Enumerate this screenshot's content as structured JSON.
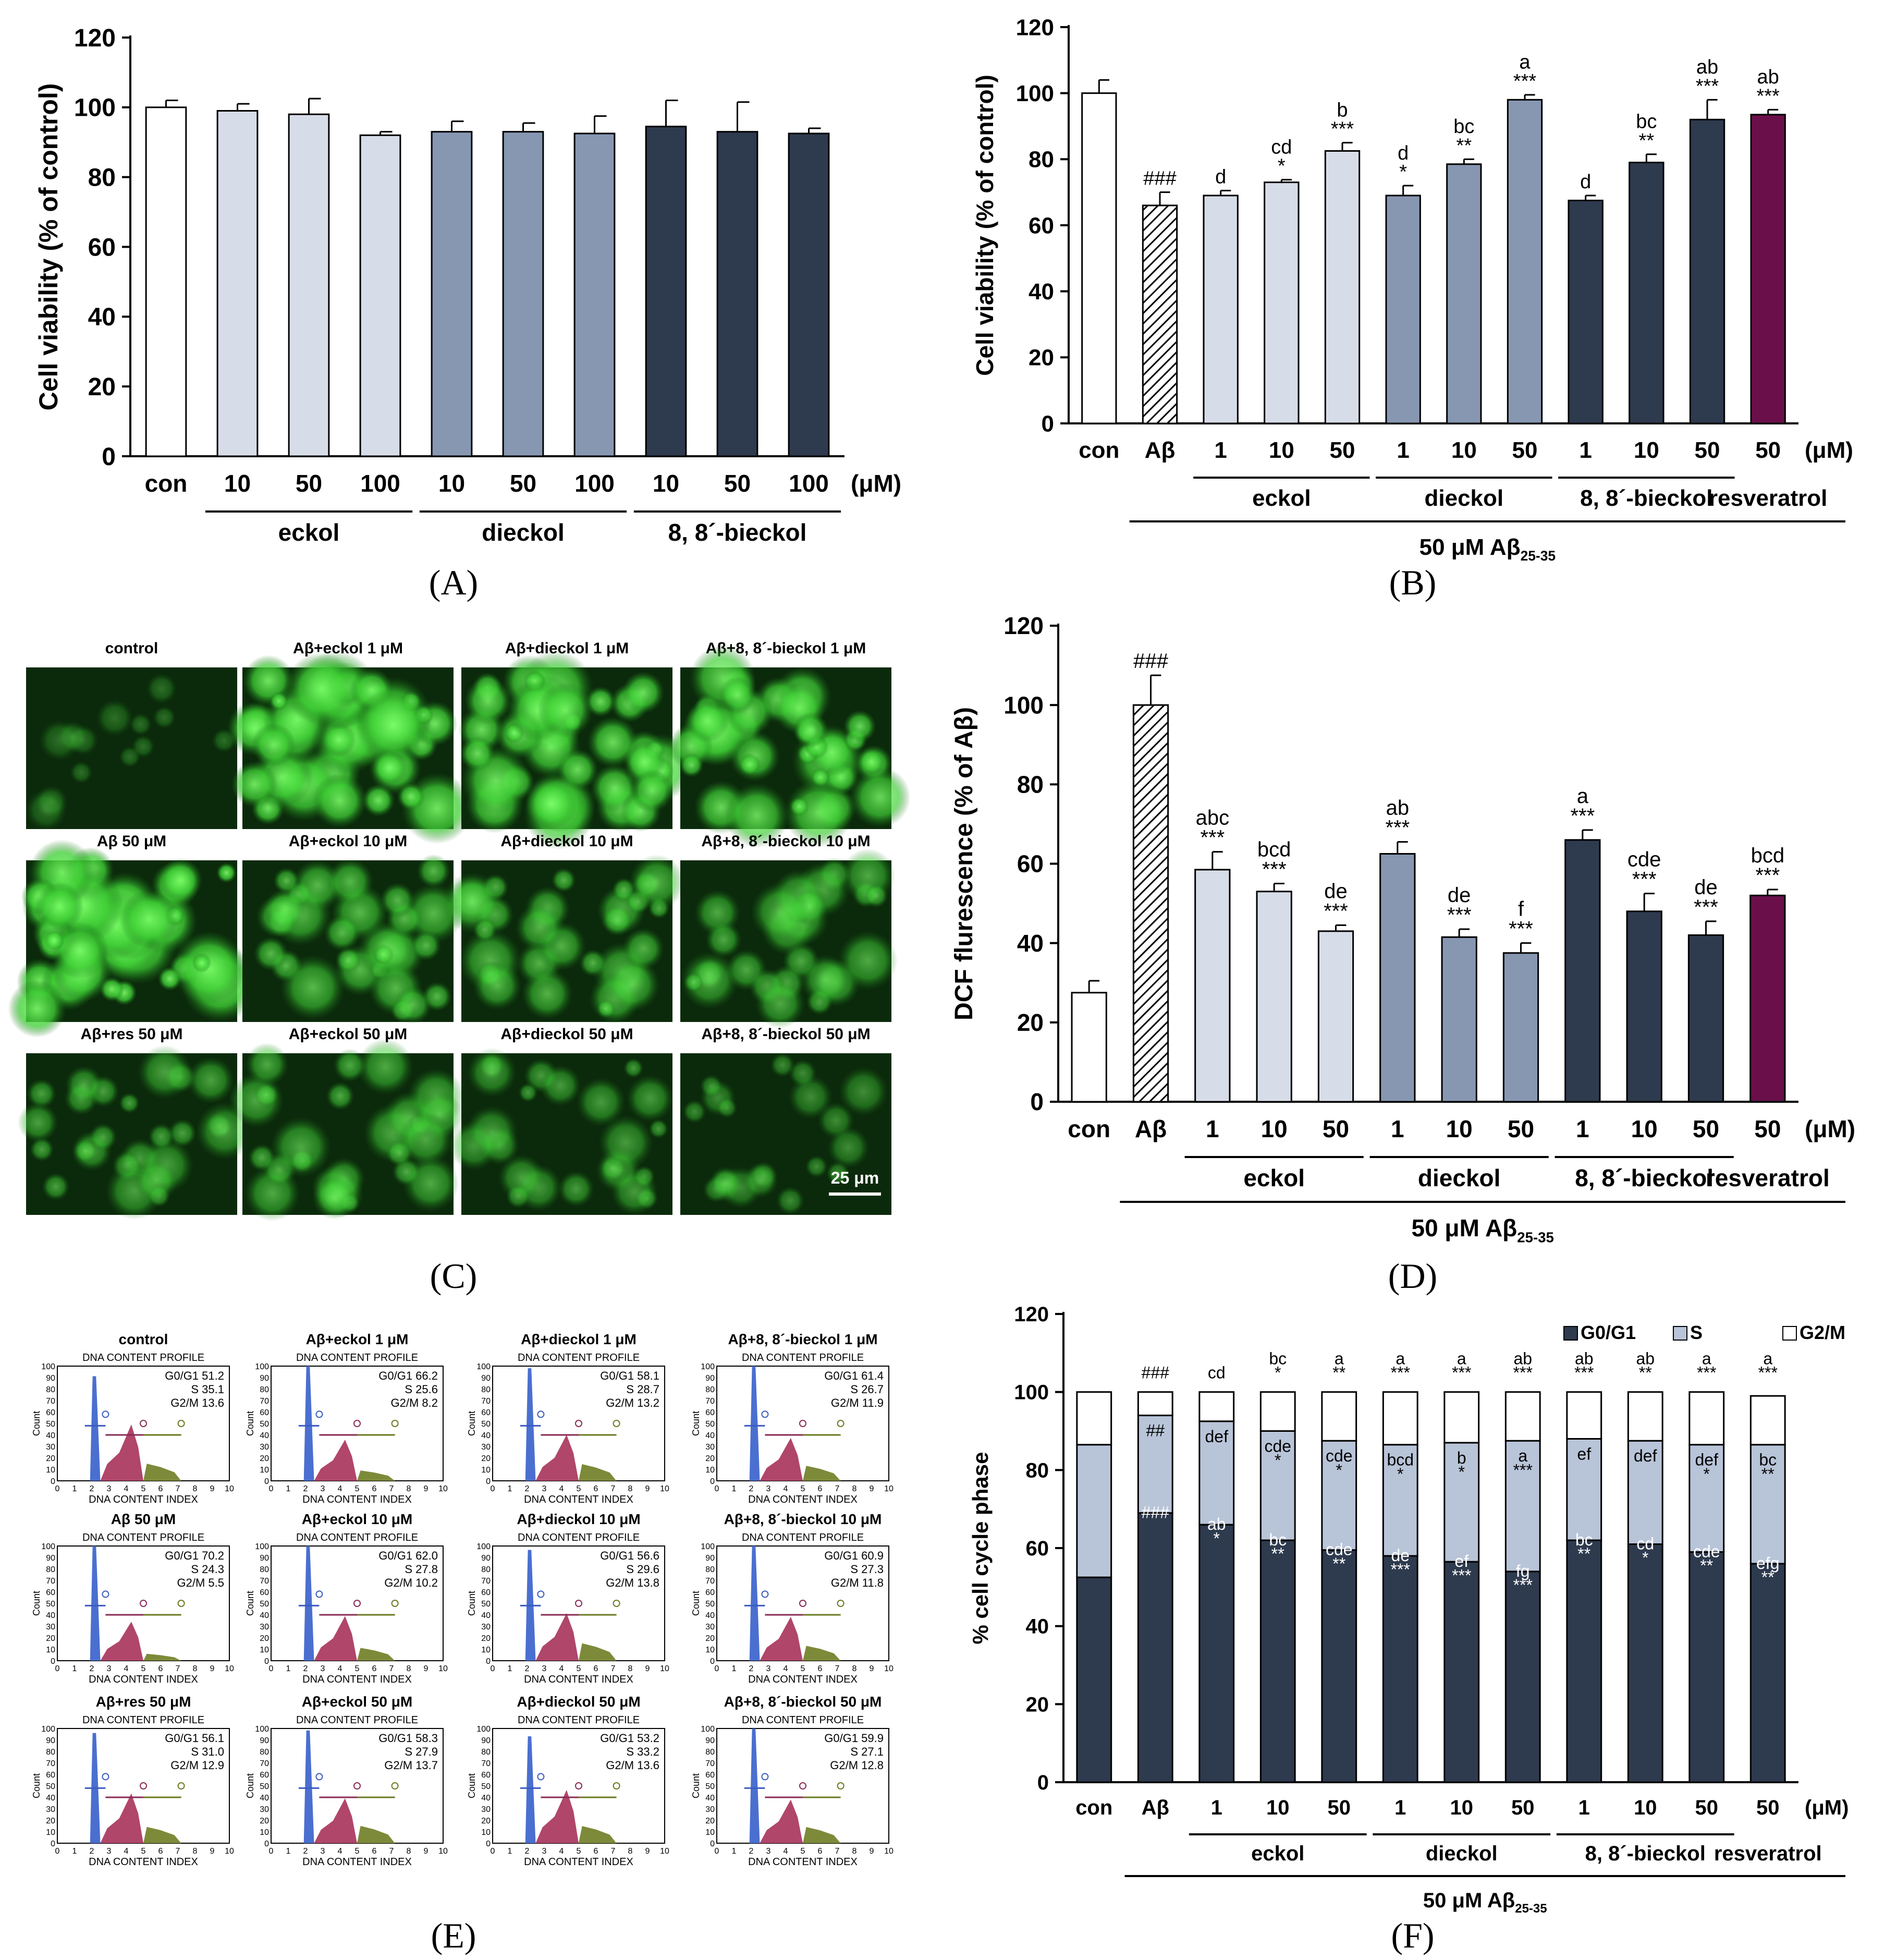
{
  "panel_labels": [
    "(A)",
    "(B)",
    "(C)",
    "(D)",
    "(E)",
    "(F)"
  ],
  "colors": {
    "white": "#ffffff",
    "light": "#d7dde8",
    "mid": "#8797b2",
    "dark": "#2e3a4e",
    "purple": "#6a0f4a",
    "g0g1": "#2e3a4e",
    "s": "#b8c4d8",
    "g2m": "#ffffff",
    "fluor_bg": "#0b2a0b",
    "fluor_bright": "#55e04a",
    "hist_blue": "#4a6fd0",
    "hist_red": "#b0466a",
    "hist_olive": "#7d8a3a"
  },
  "chart_data": [
    {
      "id": "A",
      "type": "bar",
      "ylabel": "Cell viability (% of control)",
      "ylim": [
        0,
        120
      ],
      "yticks": [
        "0",
        "20",
        "40",
        "60",
        "80",
        "100",
        "120"
      ],
      "categories": [
        "con",
        "10",
        "50",
        "100",
        "10",
        "50",
        "100",
        "10",
        "50",
        "100"
      ],
      "values": [
        100,
        99,
        98,
        92,
        93,
        93,
        92.5,
        94.5,
        93,
        92.5
      ],
      "errors": [
        2,
        2,
        4.5,
        1,
        3,
        2.5,
        5,
        7.5,
        8.5,
        1.5
      ],
      "colors": [
        "white",
        "light",
        "light",
        "light",
        "mid",
        "mid",
        "mid",
        "dark",
        "dark",
        "dark"
      ],
      "unit": "(μM)",
      "groups": [
        {
          "label": "eckol",
          "from": 1,
          "to": 3
        },
        {
          "label": "dieckol",
          "from": 4,
          "to": 6
        },
        {
          "label": "8, 8´-bieckol",
          "from": 7,
          "to": 9
        }
      ]
    },
    {
      "id": "B",
      "type": "bar",
      "ylabel": "Cell viability (% of control)",
      "ylim": [
        0,
        120
      ],
      "yticks": [
        "0",
        "20",
        "40",
        "60",
        "80",
        "100",
        "120"
      ],
      "categories": [
        "con",
        "Aβ",
        "1",
        "10",
        "50",
        "1",
        "10",
        "50",
        "1",
        "10",
        "50",
        "50"
      ],
      "values": [
        100,
        66,
        69,
        73,
        82.5,
        69,
        78.5,
        98,
        67.5,
        79,
        92,
        93.5
      ],
      "errors": [
        4,
        4,
        1.5,
        0.8,
        2.5,
        3,
        1.5,
        1.5,
        1.5,
        2.5,
        6,
        1.5
      ],
      "colors": [
        "white",
        "hatch",
        "light",
        "light",
        "light",
        "mid",
        "mid",
        "mid",
        "dark",
        "dark",
        "dark",
        "purple"
      ],
      "annotations": [
        [
          ""
        ],
        [
          "###"
        ],
        [
          "d"
        ],
        [
          "cd",
          "*"
        ],
        [
          "b",
          "***"
        ],
        [
          "d",
          "*"
        ],
        [
          "bc",
          "**"
        ],
        [
          "a",
          "***"
        ],
        [
          "d"
        ],
        [
          "bc",
          "**"
        ],
        [
          "ab",
          "***"
        ],
        [
          "ab",
          "***"
        ]
      ],
      "unit": "(μM)",
      "groups": [
        {
          "label": "eckol",
          "from": 2,
          "to": 4
        },
        {
          "label": "dieckol",
          "from": 5,
          "to": 7
        },
        {
          "label": "8, 8´-bieckol",
          "from": 8,
          "to": 10
        },
        {
          "label": "resveratrol",
          "from": 11,
          "to": 11
        }
      ],
      "treatment": {
        "prefix": "50 μM Aβ",
        "sub": "25-35"
      }
    },
    {
      "id": "D",
      "type": "bar",
      "ylabel": "DCF flurescence (% of  Aβ)",
      "ylim": [
        0,
        120
      ],
      "yticks": [
        "0",
        "20",
        "40",
        "60",
        "80",
        "100",
        "120"
      ],
      "categories": [
        "con",
        "Aβ",
        "1",
        "10",
        "50",
        "1",
        "10",
        "50",
        "1",
        "10",
        "50",
        "50"
      ],
      "values": [
        27.5,
        100,
        58.5,
        53,
        43,
        62.5,
        41.5,
        37.5,
        66,
        48,
        42,
        52
      ],
      "errors": [
        3,
        7.5,
        4.5,
        2,
        1.5,
        3,
        2,
        2.5,
        2.5,
        4.5,
        3.5,
        1.5
      ],
      "colors": [
        "white",
        "hatch",
        "light",
        "light",
        "light",
        "mid",
        "mid",
        "mid",
        "dark",
        "dark",
        "dark",
        "purple"
      ],
      "annotations": [
        [
          ""
        ],
        [
          "###"
        ],
        [
          "abc",
          "***"
        ],
        [
          "bcd",
          "***"
        ],
        [
          "de",
          "***"
        ],
        [
          "ab",
          "***"
        ],
        [
          "de",
          "***"
        ],
        [
          "f",
          "***"
        ],
        [
          "a",
          "***"
        ],
        [
          "cde",
          "***"
        ],
        [
          "de",
          "***"
        ],
        [
          "bcd",
          "***"
        ]
      ],
      "unit": "(μM)",
      "groups": [
        {
          "label": "eckol",
          "from": 2,
          "to": 4
        },
        {
          "label": "dieckol",
          "from": 5,
          "to": 7
        },
        {
          "label": "8, 8´-bieckol",
          "from": 8,
          "to": 10
        },
        {
          "label": "resveratrol",
          "from": 11,
          "to": 11
        }
      ],
      "treatment": {
        "prefix": "50 μM Aβ",
        "sub": "25-35"
      }
    },
    {
      "id": "F",
      "type": "bar",
      "stacked": true,
      "ylabel": "% cell cycle phase",
      "ylim": [
        0,
        120
      ],
      "yticks": [
        "0",
        "20",
        "40",
        "60",
        "80",
        "100",
        "120"
      ],
      "categories": [
        "con",
        "Aβ",
        "1",
        "10",
        "50",
        "1",
        "10",
        "50",
        "1",
        "10",
        "50",
        "50"
      ],
      "series": [
        {
          "name": "G0/G1",
          "values": [
            52.5,
            69,
            66,
            62,
            59.5,
            58,
            56.5,
            54,
            62,
            61,
            59,
            56
          ]
        },
        {
          "name": "S",
          "values": [
            34,
            25,
            26.5,
            28,
            28,
            28.5,
            30.5,
            33.5,
            26,
            26.5,
            27.5,
            30.5
          ]
        },
        {
          "name": "G2/M",
          "values": [
            13.5,
            6,
            7.5,
            10,
            12.5,
            13.5,
            13,
            12.5,
            12,
            12.5,
            13.5,
            12.5
          ]
        }
      ],
      "annotations_g2m": [
        [
          ""
        ],
        [
          "###"
        ],
        [
          "cd"
        ],
        [
          "bc",
          "*"
        ],
        [
          "a",
          "**"
        ],
        [
          "a",
          "***"
        ],
        [
          "a",
          "***"
        ],
        [
          "ab",
          "***"
        ],
        [
          "ab",
          "***"
        ],
        [
          "ab",
          "**"
        ],
        [
          "a",
          "***"
        ],
        [
          "a",
          "***"
        ]
      ],
      "annotations_s": [
        [
          ""
        ],
        [
          "##"
        ],
        [
          "def"
        ],
        [
          "cde",
          "*"
        ],
        [
          "cde",
          "*"
        ],
        [
          "bcd",
          "*"
        ],
        [
          "b",
          "*"
        ],
        [
          "a",
          "***"
        ],
        [
          "ef"
        ],
        [
          "def"
        ],
        [
          "def",
          "*"
        ],
        [
          "bc",
          "**"
        ]
      ],
      "annotations_g0": [
        [
          ""
        ],
        [
          "###"
        ],
        [
          "ab",
          "*"
        ],
        [
          "bc",
          "**"
        ],
        [
          "cde",
          "**"
        ],
        [
          "de",
          "***"
        ],
        [
          "ef",
          "***"
        ],
        [
          "fg",
          "***"
        ],
        [
          "bc",
          "**"
        ],
        [
          "cd",
          "*"
        ],
        [
          "cde",
          "**"
        ],
        [
          "efg",
          "**"
        ]
      ],
      "legend": [
        "G0/G1",
        "S",
        "G2/M"
      ],
      "unit": "(μM)",
      "groups": [
        {
          "label": "eckol",
          "from": 2,
          "to": 4
        },
        {
          "label": "dieckol",
          "from": 5,
          "to": 7
        },
        {
          "label": "8, 8´-bieckol",
          "from": 8,
          "to": 10
        },
        {
          "label": "resveratrol",
          "from": 11,
          "to": 11
        }
      ],
      "treatment": {
        "prefix": "50 μM Aβ",
        "sub": "25-35"
      }
    }
  ],
  "micrographs": {
    "labels": [
      "control",
      "Aβ+eckol 1 μM",
      "Aβ+dieckol 1 μM",
      "Aβ+8, 8´-bieckol 1 μM",
      "Aβ 50 μM",
      "Aβ+eckol 10 μM",
      "Aβ+dieckol 10 μM",
      "Aβ+8, 8´-bieckol 10 μM",
      "Aβ+res 50 μM",
      "Aβ+eckol 50 μM",
      "Aβ+dieckol 50 μM",
      "Aβ+8, 8´-bieckol 50 μM"
    ],
    "intensity": [
      0.1,
      0.9,
      0.85,
      0.8,
      0.95,
      0.6,
      0.55,
      0.5,
      0.45,
      0.5,
      0.4,
      0.3
    ],
    "scale_bar": "25 μm"
  },
  "flow": {
    "title": "DNA CONTENT PROFILE",
    "xlabel": "DNA CONTENT INDEX",
    "ylabel": "Count",
    "yticks": [
      "0",
      "10",
      "20",
      "30",
      "40",
      "50",
      "60",
      "70",
      "80",
      "90",
      "100"
    ],
    "xticks": [
      "0",
      "1",
      "2",
      "3",
      "4",
      "5",
      "6",
      "7",
      "8",
      "9",
      "10"
    ],
    "panels": [
      {
        "label": "control",
        "g0": "G0/G1 51.2",
        "s": "S 35.1",
        "g2": "G2/M 13.6",
        "g0v": 51.2,
        "sv": 35.1,
        "g2v": 13.6
      },
      {
        "label": "Aβ+eckol 1 μM",
        "g0": "G0/G1 66.2",
        "s": "S 25.6",
        "g2": "G2/M 8.2",
        "g0v": 66.2,
        "sv": 25.6,
        "g2v": 8.2
      },
      {
        "label": "Aβ+dieckol 1 μM",
        "g0": "G0/G1 58.1",
        "s": "S 28.7",
        "g2": "G2/M 13.2",
        "g0v": 58.1,
        "sv": 28.7,
        "g2v": 13.2
      },
      {
        "label": "Aβ+8, 8´-bieckol 1 μM",
        "g0": "G0/G1 61.4",
        "s": "S 26.7",
        "g2": "G2/M 11.9",
        "g0v": 61.4,
        "sv": 26.7,
        "g2v": 11.9
      },
      {
        "label": "Aβ 50 μM",
        "g0": "G0/G1 70.2",
        "s": "S 24.3",
        "g2": "G2/M 5.5",
        "g0v": 70.2,
        "sv": 24.3,
        "g2v": 5.5
      },
      {
        "label": "Aβ+eckol 10 μM",
        "g0": "G0/G1 62.0",
        "s": "S 27.8",
        "g2": "G2/M 10.2",
        "g0v": 62.0,
        "sv": 27.8,
        "g2v": 10.2
      },
      {
        "label": "Aβ+dieckol 10 μM",
        "g0": "G0/G1 56.6",
        "s": "S 29.6",
        "g2": "G2/M 13.8",
        "g0v": 56.6,
        "sv": 29.6,
        "g2v": 13.8
      },
      {
        "label": "Aβ+8, 8´-bieckol 10 μM",
        "g0": "G0/G1 60.9",
        "s": "S 27.3",
        "g2": "G2/M 11.8",
        "g0v": 60.9,
        "sv": 27.3,
        "g2v": 11.8
      },
      {
        "label": "Aβ+res 50 μM",
        "g0": "G0/G1 56.1",
        "s": "S 31.0",
        "g2": "G2/M 12.9",
        "g0v": 56.1,
        "sv": 31.0,
        "g2v": 12.9
      },
      {
        "label": "Aβ+eckol 50 μM",
        "g0": "G0/G1 58.3",
        "s": "S 27.9",
        "g2": "G2/M 13.7",
        "g0v": 58.3,
        "sv": 27.9,
        "g2v": 13.7
      },
      {
        "label": "Aβ+dieckol 50 μM",
        "g0": "G0/G1 53.2",
        "s": "S 33.2",
        "g2": "G2/M 13.6",
        "g0v": 53.2,
        "sv": 33.2,
        "g2v": 13.6
      },
      {
        "label": "Aβ+8, 8´-bieckol 50 μM",
        "g0": "G0/G1 59.9",
        "s": "S 27.1",
        "g2": "G2/M 12.8",
        "g0v": 59.9,
        "sv": 27.1,
        "g2v": 12.8
      }
    ]
  }
}
